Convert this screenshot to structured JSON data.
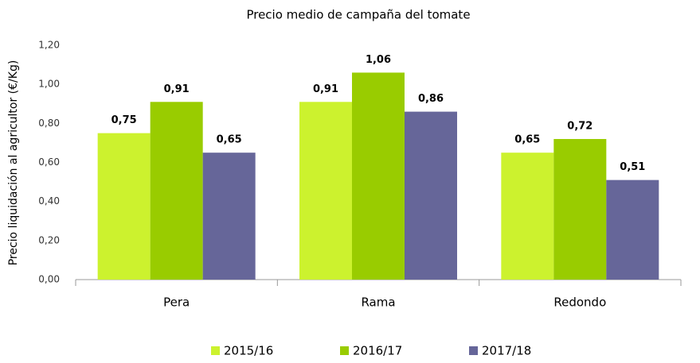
{
  "chart_data": {
    "type": "bar",
    "title": "Precio medio de campaña  del tomate",
    "y_label": "Precio liquidación al agricultor (€/Kg)",
    "categories": [
      "Pera",
      "Rama",
      "Redondo"
    ],
    "series": [
      {
        "name": "2015/16",
        "color": "#ccf22e",
        "values": [
          0.75,
          0.91,
          0.65
        ],
        "value_labels": [
          "0,75",
          "0,91",
          "0,65"
        ]
      },
      {
        "name": "2016/17",
        "color": "#99cc00",
        "values": [
          0.91,
          1.06,
          0.72
        ],
        "value_labels": [
          "0,91",
          "1,06",
          "0,72"
        ]
      },
      {
        "name": "2017/18",
        "color": "#666699",
        "values": [
          0.65,
          0.86,
          0.51
        ],
        "value_labels": [
          "0,65",
          "0,86",
          "0,51"
        ]
      }
    ],
    "ylim": [
      0,
      1.2
    ],
    "yticks": [
      {
        "value": 0,
        "label": "0,00"
      },
      {
        "value": 0.2,
        "label": "0,20"
      },
      {
        "value": 0.4,
        "label": "0,40"
      },
      {
        "value": 0.6,
        "label": "0,60"
      },
      {
        "value": 0.8,
        "label": "0,80"
      },
      {
        "value": 1.0,
        "label": "1,00"
      },
      {
        "value": 1.2,
        "label": "1,20"
      }
    ],
    "legend": "bottom"
  }
}
